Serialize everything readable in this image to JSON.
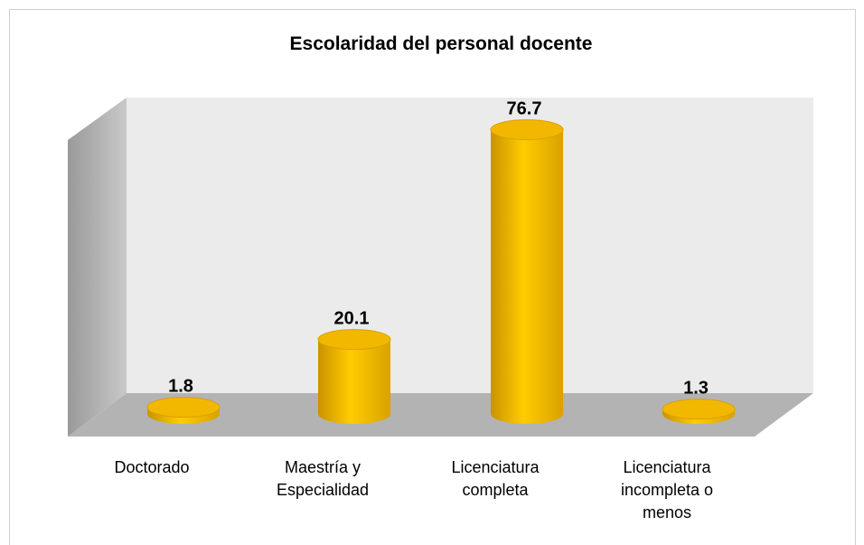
{
  "chart_data": {
    "type": "bar3d",
    "title": "Escolaridad  del personal docente",
    "categories": [
      "Doctorado",
      "Maestría y Especialidad",
      "Licenciatura completa",
      "Licenciatura incompleta o menos"
    ],
    "values": [
      1.8,
      20.1,
      76.7,
      1.3
    ],
    "color": "#ffc000"
  }
}
